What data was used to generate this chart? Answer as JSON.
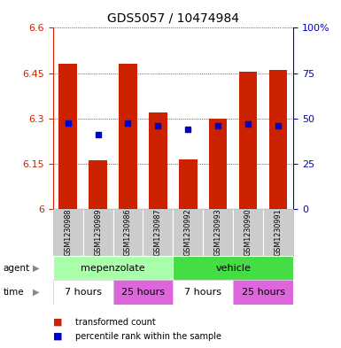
{
  "title": "GDS5057 / 10474984",
  "samples": [
    "GSM1230988",
    "GSM1230989",
    "GSM1230986",
    "GSM1230987",
    "GSM1230992",
    "GSM1230993",
    "GSM1230990",
    "GSM1230991"
  ],
  "bar_bottoms": [
    6.0,
    6.0,
    6.0,
    6.0,
    6.0,
    6.0,
    6.0,
    6.0
  ],
  "bar_tops": [
    6.48,
    6.16,
    6.48,
    6.32,
    6.165,
    6.3,
    6.455,
    6.46
  ],
  "percentile_values": [
    6.285,
    6.245,
    6.285,
    6.275,
    6.265,
    6.275,
    6.28,
    6.275
  ],
  "ylim_left": [
    6.0,
    6.6
  ],
  "ylim_right": [
    0,
    100
  ],
  "yticks_left": [
    6.0,
    6.15,
    6.3,
    6.45,
    6.6
  ],
  "yticks_right": [
    0,
    25,
    50,
    75,
    100
  ],
  "ytick_labels_left": [
    "6",
    "6.15",
    "6.3",
    "6.45",
    "6.6"
  ],
  "ytick_labels_right": [
    "0",
    "25",
    "50",
    "75",
    "100%"
  ],
  "bar_color": "#cc2200",
  "percentile_color": "#0000cc",
  "agent_groups": [
    {
      "label": "mepenzolate",
      "start": 0,
      "end": 4,
      "color": "#aaffaa"
    },
    {
      "label": "vehicle",
      "start": 4,
      "end": 8,
      "color": "#44dd44"
    }
  ],
  "time_groups": [
    {
      "label": "7 hours",
      "start": 0,
      "end": 2,
      "color": "#ffffff"
    },
    {
      "label": "25 hours",
      "start": 2,
      "end": 4,
      "color": "#dd66dd"
    },
    {
      "label": "7 hours",
      "start": 4,
      "end": 6,
      "color": "#ffffff"
    },
    {
      "label": "25 hours",
      "start": 6,
      "end": 8,
      "color": "#dd66dd"
    }
  ],
  "legend_items": [
    {
      "label": "transformed count",
      "color": "#cc2200"
    },
    {
      "label": "percentile rank within the sample",
      "color": "#0000cc"
    }
  ],
  "axis_color_left": "#cc2200",
  "axis_color_right": "#0000cc",
  "background_color": "#ffffff"
}
